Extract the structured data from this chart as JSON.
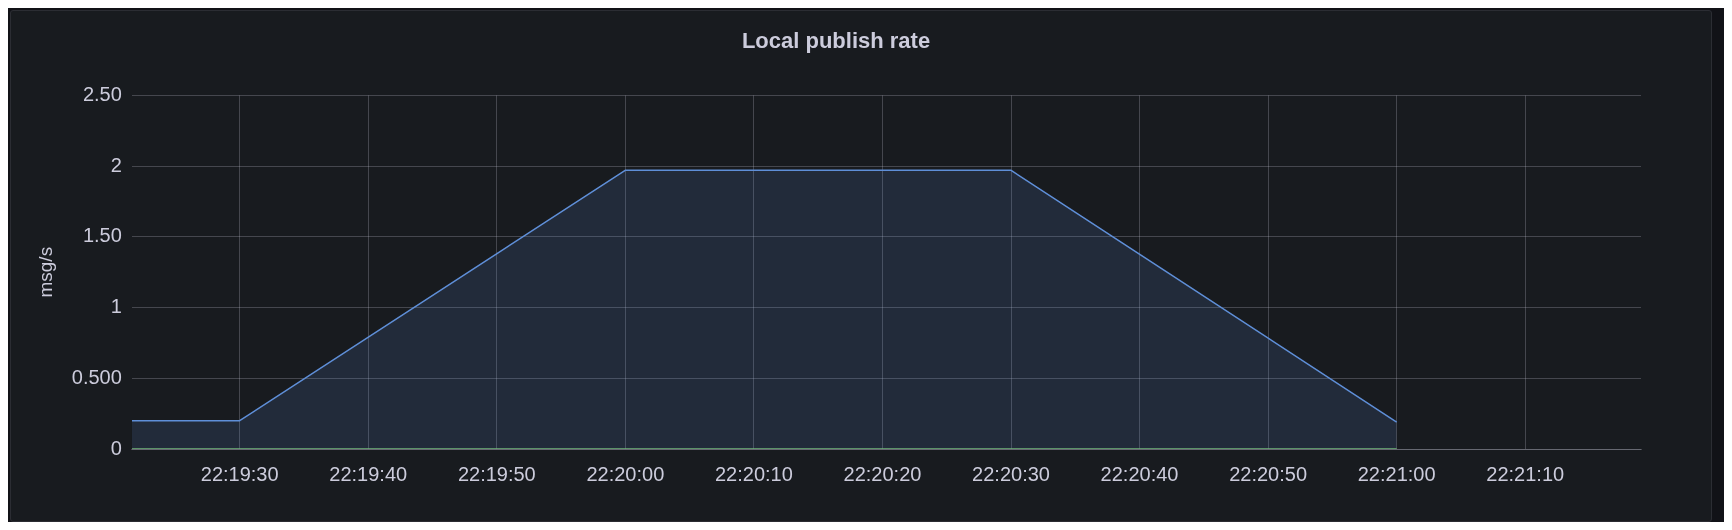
{
  "chart_data": {
    "type": "area",
    "title": "Local publish rate",
    "ylabel": "msg/s",
    "x": [
      22.32267,
      22.325,
      22.33333,
      22.34167,
      22.35
    ],
    "series": [
      {
        "color": "#5f8fd8",
        "values": [
          0.2,
          0.2,
          1.97,
          1.97,
          0.19
        ]
      },
      {
        "type": "line",
        "color": "#73bf69",
        "values": [
          0,
          0,
          0,
          0,
          0
        ]
      }
    ],
    "xlim": [
      22.32267,
      22.35528
    ],
    "xticks": [
      {
        "value": 22.325,
        "label": "22:19:30"
      },
      {
        "value": 22.327778,
        "label": "22:19:40"
      },
      {
        "value": 22.330556,
        "label": "22:19:50"
      },
      {
        "value": 22.333333,
        "label": "22:20:00"
      },
      {
        "value": 22.336111,
        "label": "22:20:10"
      },
      {
        "value": 22.338889,
        "label": "22:20:20"
      },
      {
        "value": 22.341667,
        "label": "22:20:30"
      },
      {
        "value": 22.344444,
        "label": "22:20:40"
      },
      {
        "value": 22.347222,
        "label": "22:20:50"
      },
      {
        "value": 22.35,
        "label": "22:21:00"
      },
      {
        "value": 22.352778,
        "label": "22:21:10"
      }
    ],
    "ylim": [
      0,
      2.5
    ],
    "yticks": [
      0,
      {
        "value": 0.5,
        "label": "0.500"
      },
      1,
      {
        "value": 1.5,
        "label": "1.50"
      },
      2,
      {
        "value": 2.5,
        "label": "2.50"
      }
    ],
    "grid": true,
    "legend": false,
    "marker": "none",
    "line_style": "solid"
  }
}
